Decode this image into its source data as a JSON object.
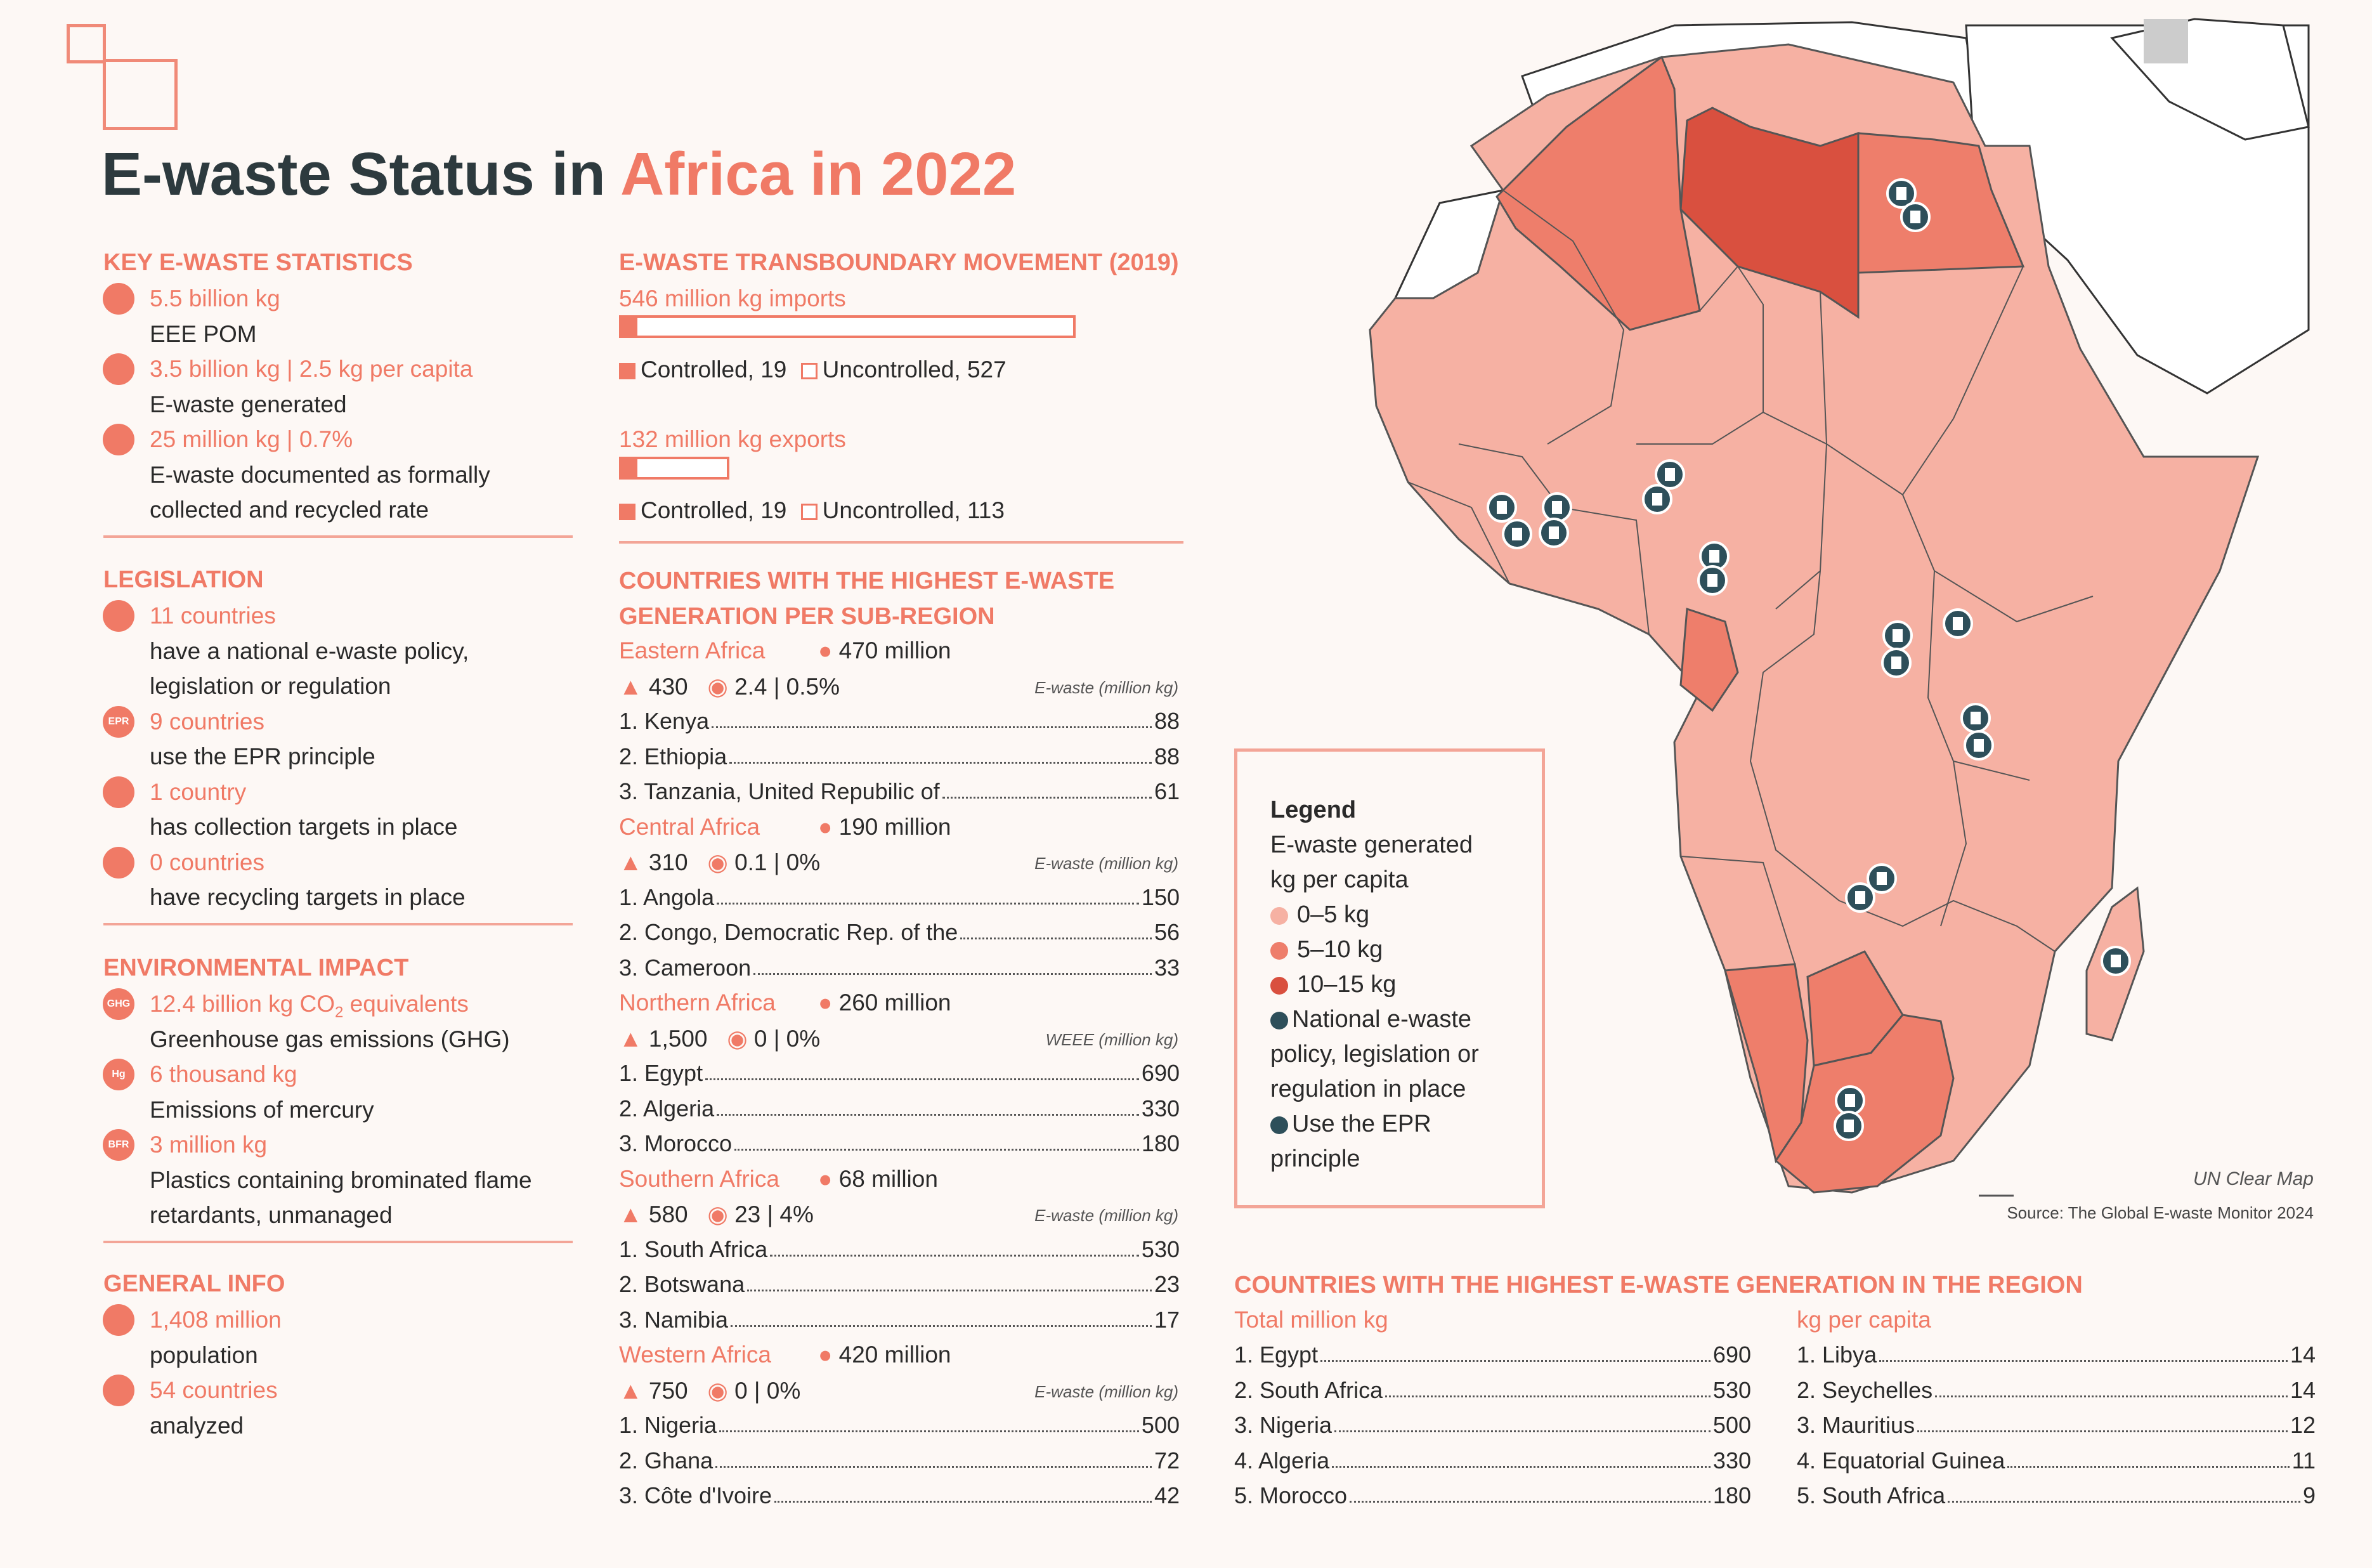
{
  "title": {
    "part1": "E-waste Status in ",
    "part2": "Africa in 2022"
  },
  "colors": {
    "accent": "#f07a66",
    "light": "#f3a597",
    "band1": "#f6b1a3",
    "band2": "#ee7e6b",
    "band3": "#d9503f",
    "marker": "#2e4f5a"
  },
  "key_stats": {
    "heading": "KEY E-WASTE STATISTICS",
    "items": [
      {
        "icon": "device-icon",
        "value": "5.5 billion kg",
        "desc": [
          "EEE POM"
        ]
      },
      {
        "icon": "bin-icon",
        "value": "3.5 billion kg | 2.5 kg per capita",
        "desc": [
          "E-waste generated"
        ]
      },
      {
        "icon": "recycle-icon",
        "value": "25 million kg | 0.7%",
        "desc": [
          "E-waste documented as formally",
          "collected and recycled rate"
        ]
      }
    ]
  },
  "legislation": {
    "heading": "LEGISLATION",
    "items": [
      {
        "icon": "policy-icon",
        "value": "11 countries",
        "desc": [
          "have a national e-waste policy,",
          "legislation or regulation"
        ]
      },
      {
        "icon": "epr-icon",
        "icon_text": "EPR",
        "value": "9 countries",
        "desc": [
          "use the EPR principle"
        ]
      },
      {
        "icon": "collection-icon",
        "value": "1 country",
        "desc": [
          "has collection targets in place"
        ]
      },
      {
        "icon": "recycling-target-icon",
        "value": "0 countries",
        "desc": [
          "have recycling targets in place"
        ]
      }
    ]
  },
  "environment": {
    "heading": "ENVIRONMENTAL IMPACT",
    "items": [
      {
        "icon": "ghg-icon",
        "icon_text": "GHG",
        "value": "12.4 billion kg CO",
        "value_sub": "2",
        "value_tail": " equivalents",
        "desc": [
          "Greenhouse gas emissions (GHG)"
        ]
      },
      {
        "icon": "mercury-icon",
        "icon_text": "Hg",
        "value": "6 thousand kg",
        "desc": [
          "Emissions of mercury"
        ]
      },
      {
        "icon": "bfr-icon",
        "icon_text": "BFR",
        "value": "3 million kg",
        "desc": [
          "Plastics containing brominated flame",
          "retardants, unmanaged"
        ]
      }
    ]
  },
  "general": {
    "heading": "GENERAL INFO",
    "items": [
      {
        "icon": "population-icon",
        "value": "1,408 million",
        "desc": [
          "population"
        ]
      },
      {
        "icon": "flag-icon",
        "value": "54 countries",
        "desc": [
          "analyzed"
        ]
      }
    ]
  },
  "transboundary": {
    "heading": "E-WASTE TRANSBOUNDARY MOVEMENT (2019)",
    "imports": {
      "label": "546 million kg imports",
      "controlled_label": "Controlled, 19",
      "uncontrolled_label": "Uncontrolled, 527",
      "controlled": 19,
      "uncontrolled": 527
    },
    "exports": {
      "label": "132 million kg exports",
      "controlled_label": "Controlled, 19",
      "uncontrolled_label": "Uncontrolled, 113",
      "controlled": 19,
      "uncontrolled": 113
    }
  },
  "subregions": {
    "heading1": "COUNTRIES WITH THE HIGHEST E-WASTE",
    "heading2": "GENERATION PER SUB-REGION",
    "regions": [
      {
        "name": "Eastern Africa",
        "population": "470 million",
        "generated": "430",
        "rate": "2.4 | 0.5%",
        "unit": "E-waste (million kg)",
        "rows": [
          {
            "label": "1. Kenya",
            "value": "88"
          },
          {
            "label": "2. Ethiopia",
            "value": "88"
          },
          {
            "label": "3. Tanzania, United Repubilic of",
            "value": "61"
          }
        ]
      },
      {
        "name": "Central Africa",
        "population": "190 million",
        "generated": "310",
        "rate": "0.1 | 0%",
        "unit": "E-waste (million kg)",
        "rows": [
          {
            "label": "1. Angola",
            "value": "150"
          },
          {
            "label": "2. Congo, Democratic Rep. of the",
            "value": "56"
          },
          {
            "label": "3. Cameroon",
            "value": "33"
          }
        ]
      },
      {
        "name": "Northern Africa",
        "population": "260 million",
        "generated": "1,500",
        "rate": "0 | 0%",
        "unit": "WEEE (million kg)",
        "rows": [
          {
            "label": "1. Egypt",
            "value": "690"
          },
          {
            "label": "2. Algeria",
            "value": "330"
          },
          {
            "label": "3. Morocco",
            "value": "180"
          }
        ]
      },
      {
        "name": "Southern Africa",
        "population": "68 million",
        "generated": "580",
        "rate": "23 | 4%",
        "unit": "E-waste (million kg)",
        "rows": [
          {
            "label": "1. South Africa",
            "value": "530"
          },
          {
            "label": "2. Botswana",
            "value": "23"
          },
          {
            "label": "3. Namibia",
            "value": "17"
          }
        ]
      },
      {
        "name": "Western Africa",
        "population": "420 million",
        "generated": "750",
        "rate": "0 | 0%",
        "unit": "E-waste (million kg)",
        "rows": [
          {
            "label": "1. Nigeria",
            "value": "500"
          },
          {
            "label": "2. Ghana",
            "value": "72"
          },
          {
            "label": "3. Côte d'Ivoire",
            "value": "42"
          }
        ]
      }
    ]
  },
  "legend": {
    "title": "Legend",
    "line1": "E-waste generated",
    "line2": "kg per capita",
    "bands": [
      {
        "label": "0–5 kg"
      },
      {
        "label": "5–10 kg"
      },
      {
        "label": "10–15 kg"
      }
    ],
    "policy": [
      "National e-waste",
      "policy, legislation or",
      "regulation in place"
    ],
    "epr": [
      "Use the EPR",
      "principle"
    ],
    "epr_icon_text": "EPR"
  },
  "map": {
    "caption": "UN Clear Map",
    "source": "Source: The Global E-waste Monitor 2024",
    "marker_text": "EPR"
  },
  "region_table": {
    "heading": "COUNTRIES WITH THE HIGHEST E-WASTE GENERATION IN THE REGION",
    "left_header": "Total million kg",
    "right_header": "kg per capita",
    "left": [
      {
        "label": "1. Egypt",
        "value": "690"
      },
      {
        "label": "2. South Africa",
        "value": "530"
      },
      {
        "label": "3. Nigeria",
        "value": "500"
      },
      {
        "label": "4. Algeria",
        "value": "330"
      },
      {
        "label": "5. Morocco",
        "value": "180"
      }
    ],
    "right": [
      {
        "label": "1. Libya",
        "value": "14"
      },
      {
        "label": "2. Seychelles",
        "value": "14"
      },
      {
        "label": "3. Mauritius",
        "value": "12"
      },
      {
        "label": "4. Equatorial Guinea",
        "value": "11"
      },
      {
        "label": "5. South Africa",
        "value": "9"
      }
    ]
  }
}
